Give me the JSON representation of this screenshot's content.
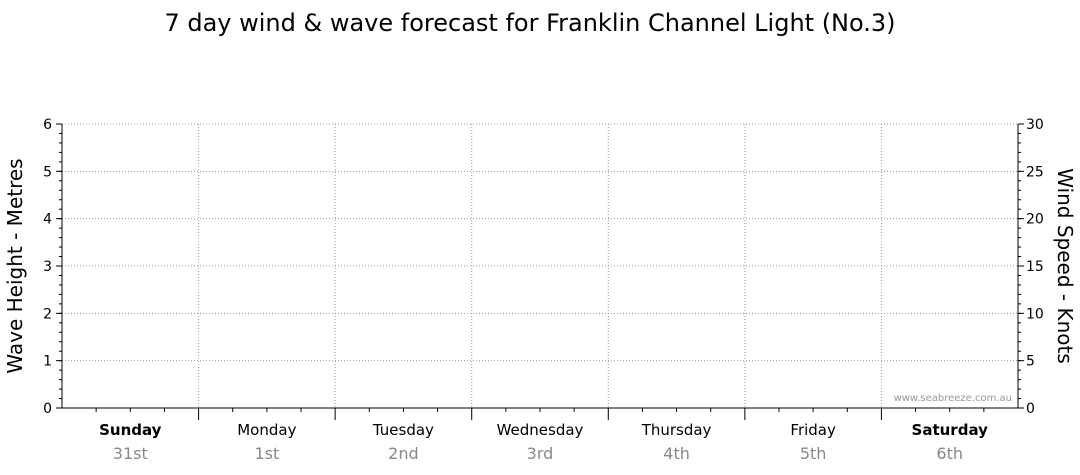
{
  "chart_data": {
    "type": "line",
    "title": "7 day wind & wave forecast for Franklin Channel Light (No.3)",
    "ylabel_left": "Wave Height - Metres",
    "ylabel_right": "Wind Speed - Knots",
    "ylim_left": [
      0,
      6
    ],
    "ylim_right": [
      0,
      30
    ],
    "yticks_left": [
      "0",
      "1",
      "2",
      "3",
      "4",
      "5",
      "6"
    ],
    "yticks_right": [
      "0",
      "5",
      "10",
      "15",
      "20",
      "25",
      "30"
    ],
    "days": [
      {
        "name": "Sunday",
        "date": "31st",
        "bold": true
      },
      {
        "name": "Monday",
        "date": "1st",
        "bold": false
      },
      {
        "name": "Tuesday",
        "date": "2nd",
        "bold": false
      },
      {
        "name": "Wednesday",
        "date": "3rd",
        "bold": false
      },
      {
        "name": "Thursday",
        "date": "4th",
        "bold": false
      },
      {
        "name": "Friday",
        "date": "5th",
        "bold": false
      },
      {
        "name": "Saturday",
        "date": "6th",
        "bold": true
      }
    ],
    "series": [],
    "grid": true,
    "watermark": "www.seabreeze.com.au"
  }
}
